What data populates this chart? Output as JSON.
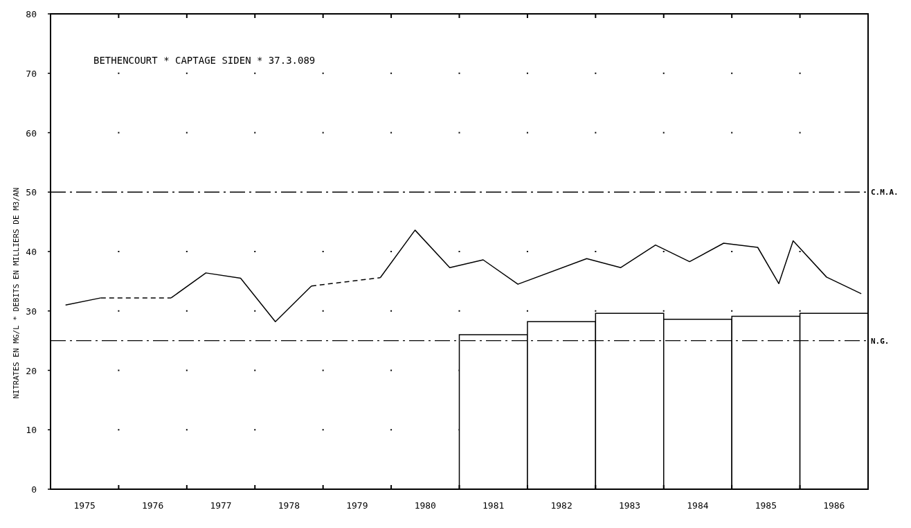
{
  "chart_data": {
    "type": "line",
    "title": "BETHENCOURT * CAPTAGE SIDEN * 37.3.089",
    "ylabel": "NITRATES EN MG/L * DEBITS EN MILLIERS DE M3/AN",
    "xlim": [
      1975,
      1987
    ],
    "xticks": [
      {
        "value": 1976,
        "label": null
      },
      {
        "value": 1977,
        "label": null
      },
      {
        "value": 1978,
        "label": null
      },
      {
        "value": 1979,
        "label": null
      },
      {
        "value": 1980,
        "label": null
      },
      {
        "value": 1981,
        "label": null
      },
      {
        "value": 1982,
        "label": null
      },
      {
        "value": 1983,
        "label": null
      },
      {
        "value": 1984,
        "label": null
      },
      {
        "value": 1985,
        "label": null
      },
      {
        "value": 1986,
        "label": null
      },
      {
        "value": 1975.5,
        "label": "1975"
      },
      {
        "value": 1976.5,
        "label": "1976"
      },
      {
        "value": 1977.5,
        "label": "1977"
      },
      {
        "value": 1978.5,
        "label": "1978"
      },
      {
        "value": 1979.5,
        "label": "1979"
      },
      {
        "value": 1980.5,
        "label": "1980"
      },
      {
        "value": 1981.5,
        "label": "1981"
      },
      {
        "value": 1982.5,
        "label": "1982"
      },
      {
        "value": 1983.5,
        "label": "1983"
      },
      {
        "value": 1984.5,
        "label": "1984"
      },
      {
        "value": 1985.5,
        "label": "1985"
      },
      {
        "value": 1986.5,
        "label": "1986"
      }
    ],
    "ylim": [
      0,
      80
    ],
    "yticks": [
      0,
      10,
      20,
      30,
      40,
      50,
      60,
      70,
      80
    ],
    "grid": true,
    "series": [
      {
        "type": "bar",
        "color": "#ffffff",
        "x": [
          1981.5,
          1982.5,
          1983.5,
          1984.5,
          1985.5,
          1986.5
        ],
        "values": [
          26,
          28.2,
          29.6,
          28.6,
          29.1,
          29.6
        ]
      },
      {
        "color": "#000000",
        "line_style": "solid",
        "x": [
          1975.22,
          1975.74
        ],
        "values": [
          31.0,
          32.2
        ]
      },
      {
        "color": "#000000",
        "line_style": "solid",
        "x": [
          1976.77,
          1977.28,
          1977.79,
          1978.3,
          1978.83
        ],
        "values": [
          32.2,
          36.4,
          35.5,
          28.2,
          34.2
        ]
      },
      {
        "color": "#000000",
        "line_style": "solid",
        "x": [
          1979.84,
          1980.35,
          1980.86,
          1981.35,
          1981.86,
          1982.87,
          1983.37,
          1983.88,
          1984.38,
          1984.88,
          1985.38,
          1985.69,
          1985.9,
          1986.39,
          1986.9
        ],
        "values": [
          35.6,
          43.6,
          37.3,
          38.6,
          34.5,
          38.8,
          37.3,
          41.1,
          38.3,
          41.4,
          40.7,
          34.6,
          41.8,
          35.7,
          32.9
        ]
      },
      {
        "color": "#000000",
        "line_style": "dashed",
        "x": [
          1975.74,
          1976.77
        ],
        "values": [
          32.2,
          32.2
        ]
      },
      {
        "color": "#000000",
        "line_style": "dashed",
        "x": [
          1978.83,
          1979.84
        ],
        "values": [
          34.2,
          35.6
        ]
      }
    ],
    "ref_lines": [
      {
        "axis": "y",
        "value": 50,
        "label": "C.M.A."
      },
      {
        "axis": "y",
        "value": 25,
        "label": "N.G."
      }
    ]
  }
}
